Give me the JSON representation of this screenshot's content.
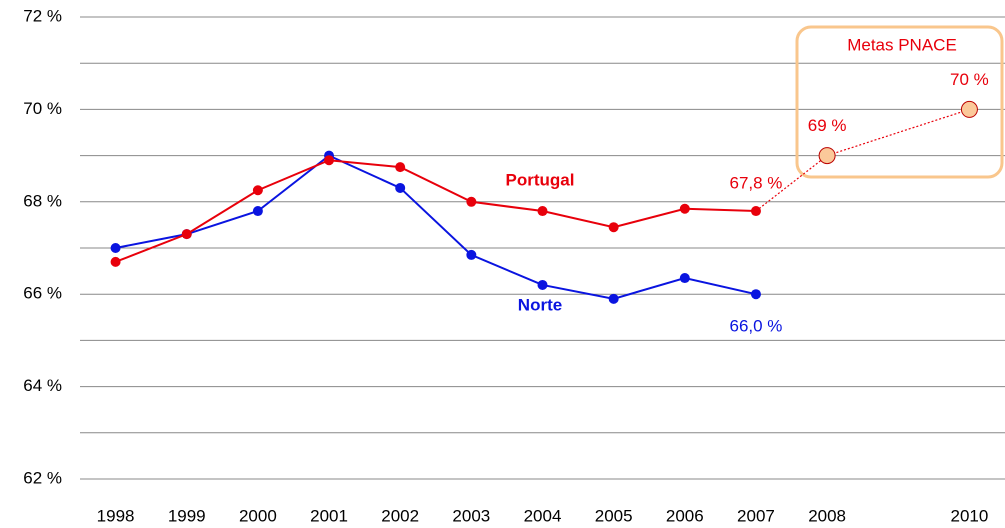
{
  "chart_data": {
    "type": "line",
    "x": [
      1998,
      1999,
      2000,
      2001,
      2002,
      2003,
      2004,
      2005,
      2006,
      2007,
      2008,
      2010
    ],
    "xlim": [
      1997.5,
      2010.5
    ],
    "ylim": [
      62,
      72
    ],
    "yticks": [
      {
        "value": 62,
        "label": "62 %"
      },
      {
        "value": 64,
        "label": "64 %"
      },
      {
        "value": 66,
        "label": "66 %"
      },
      {
        "value": 68,
        "label": "68 %"
      },
      {
        "value": 70,
        "label": "70 %"
      },
      {
        "value": 72,
        "label": "72 %"
      }
    ],
    "minor_yticks": [
      63,
      65,
      67,
      69,
      71
    ],
    "grid": true,
    "series": [
      {
        "name": "Portugal",
        "color": "#e8000b",
        "values": [
          66.7,
          67.3,
          68.25,
          68.9,
          68.75,
          68.0,
          67.8,
          67.45,
          67.85,
          67.8,
          null,
          null
        ],
        "value_labels": [
          null,
          null,
          null,
          null,
          null,
          null,
          null,
          null,
          null,
          "67,8 %",
          null,
          null
        ]
      },
      {
        "name": "Norte",
        "color": "#0a14e0",
        "values": [
          67.0,
          67.3,
          67.8,
          69.0,
          68.3,
          66.85,
          66.2,
          65.9,
          66.35,
          66.0,
          null,
          null
        ],
        "value_labels": [
          null,
          null,
          null,
          null,
          null,
          null,
          null,
          null,
          null,
          "66,0 %",
          null,
          null
        ]
      },
      {
        "name": "Metas PNACE",
        "color": "#e8000b",
        "marker_fill": "#fbc99a",
        "box_color": "#f9c68c",
        "dashed": true,
        "values": [
          null,
          null,
          null,
          null,
          null,
          null,
          null,
          null,
          null,
          67.8,
          69,
          70
        ],
        "value_labels": [
          null,
          null,
          null,
          null,
          null,
          null,
          null,
          null,
          null,
          null,
          "69 %",
          "70 %"
        ]
      }
    ]
  }
}
